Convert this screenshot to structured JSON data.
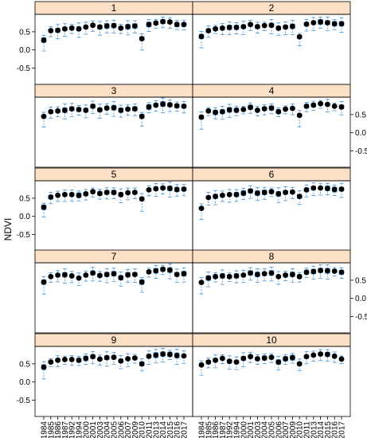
{
  "chart_data": {
    "type": "scatter",
    "layout": "lattice box-and-whisker panels, 2 columns x 5 rows",
    "ylabel": "NDVI",
    "ylim": [
      -0.95,
      0.98
    ],
    "y_ticks": [
      -0.5,
      0.0,
      0.5
    ],
    "y_tick_labels": [
      "-0.5",
      "0.0",
      "0.5"
    ],
    "years": [
      "1984",
      "1985",
      "1986",
      "1987",
      "1992",
      "1994",
      "2000",
      "2001",
      "2003",
      "2004",
      "2005",
      "2006",
      "2007",
      "2009",
      "2010",
      "2011",
      "2013",
      "2014",
      "2015",
      "2016",
      "2017"
    ],
    "colors": {
      "strip": "#fbe0c6",
      "point": "#000000",
      "box": "#3f8fd6"
    },
    "panels": [
      {
        "name": "1",
        "medians": [
          0.27,
          0.53,
          0.54,
          0.58,
          0.6,
          0.58,
          0.63,
          0.68,
          0.63,
          0.66,
          0.67,
          0.6,
          0.64,
          0.66,
          0.31,
          0.7,
          0.74,
          0.78,
          0.77,
          0.7,
          0.7
        ]
      },
      {
        "name": "2",
        "medians": [
          0.37,
          0.53,
          0.58,
          0.6,
          0.62,
          0.62,
          0.64,
          0.7,
          0.64,
          0.67,
          0.68,
          0.6,
          0.63,
          0.65,
          0.36,
          0.71,
          0.75,
          0.77,
          0.75,
          0.72,
          0.72
        ]
      },
      {
        "name": "3",
        "medians": [
          0.45,
          0.58,
          0.6,
          0.62,
          0.66,
          0.64,
          0.62,
          0.73,
          0.63,
          0.68,
          0.69,
          0.62,
          0.65,
          0.66,
          0.45,
          0.71,
          0.76,
          0.79,
          0.77,
          0.74,
          0.73
        ]
      },
      {
        "name": "4",
        "medians": [
          0.43,
          0.6,
          0.56,
          0.58,
          0.63,
          0.62,
          0.64,
          0.7,
          0.62,
          0.66,
          0.68,
          0.58,
          0.65,
          0.67,
          0.48,
          0.73,
          0.76,
          0.8,
          0.78,
          0.73,
          0.71
        ]
      },
      {
        "name": "5",
        "medians": [
          0.25,
          0.53,
          0.58,
          0.6,
          0.6,
          0.58,
          0.62,
          0.68,
          0.63,
          0.66,
          0.66,
          0.6,
          0.65,
          0.66,
          0.48,
          0.73,
          0.76,
          0.78,
          0.77,
          0.74,
          0.75
        ]
      },
      {
        "name": "6",
        "medians": [
          0.22,
          0.52,
          0.55,
          0.58,
          0.6,
          0.6,
          0.64,
          0.7,
          0.64,
          0.66,
          0.68,
          0.62,
          0.66,
          0.67,
          0.55,
          0.73,
          0.78,
          0.78,
          0.77,
          0.74,
          0.75
        ]
      },
      {
        "name": "7",
        "medians": [
          0.45,
          0.6,
          0.64,
          0.65,
          0.62,
          0.56,
          0.64,
          0.7,
          0.63,
          0.66,
          0.68,
          0.57,
          0.65,
          0.66,
          0.45,
          0.73,
          0.76,
          0.8,
          0.78,
          0.66,
          0.68
        ]
      },
      {
        "name": "8",
        "medians": [
          0.44,
          0.56,
          0.6,
          0.62,
          0.6,
          0.62,
          0.64,
          0.7,
          0.66,
          0.68,
          0.7,
          0.6,
          0.64,
          0.66,
          0.6,
          0.72,
          0.74,
          0.77,
          0.76,
          0.75,
          0.72
        ]
      },
      {
        "name": "9",
        "medians": [
          0.41,
          0.55,
          0.6,
          0.62,
          0.62,
          0.6,
          0.65,
          0.7,
          0.63,
          0.67,
          0.68,
          0.58,
          0.64,
          0.66,
          0.5,
          0.71,
          0.74,
          0.77,
          0.76,
          0.73,
          0.72
        ]
      },
      {
        "name": "10",
        "medians": [
          0.47,
          0.55,
          0.6,
          0.65,
          0.57,
          0.55,
          0.65,
          0.7,
          0.64,
          0.66,
          0.68,
          0.55,
          0.64,
          0.67,
          0.5,
          0.7,
          0.74,
          0.77,
          0.76,
          0.71,
          0.63
        ]
      }
    ]
  }
}
